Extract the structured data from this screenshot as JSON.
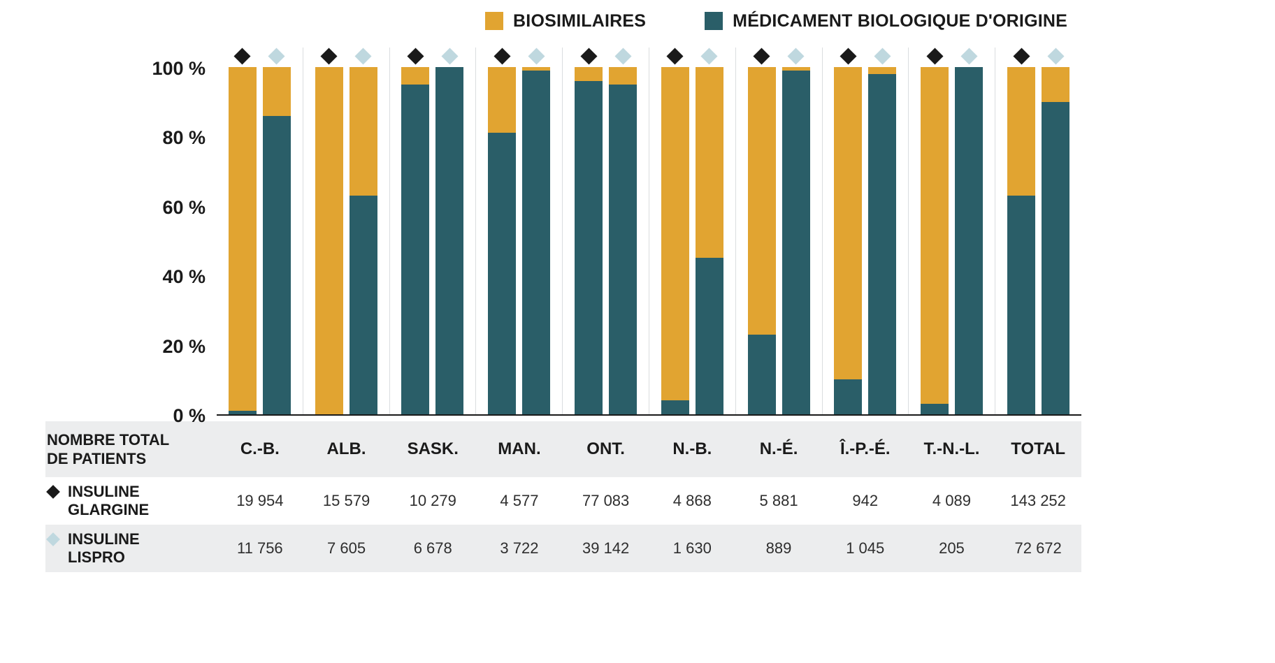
{
  "legend": {
    "items": [
      {
        "label": "BIOSIMILAIRES",
        "color": "#E1A431"
      },
      {
        "label": "MÉDICAMENT BIOLOGIQUE D'ORIGINE",
        "color": "#2A5E68"
      }
    ]
  },
  "chart_data": {
    "type": "bar",
    "stacked": true,
    "unit": "percent",
    "title": "",
    "xlabel": "",
    "ylabel": "",
    "ylim": [
      0,
      100
    ],
    "grid": "vertical-separators",
    "legend_position": "top-right",
    "categories": [
      "C.-B.",
      "ALB.",
      "SASK.",
      "MAN.",
      "ONT.",
      "N.-B.",
      "N.-É.",
      "Î.-P.-É.",
      "T.-N.-L.",
      "TOTAL"
    ],
    "y_ticks": [
      {
        "label": "100 %",
        "value": 100
      },
      {
        "label": "80 %",
        "value": 80
      },
      {
        "label": "60 %",
        "value": 60
      },
      {
        "label": "40 %",
        "value": 40
      },
      {
        "label": "20 %",
        "value": 20
      },
      {
        "label": "0 %",
        "value": 0
      }
    ],
    "series_groups": [
      {
        "name": "INSULINE GLARGINE",
        "marker": "black-diamond",
        "marker_color": "#1a1a1a",
        "biosimilaires": [
          99,
          100,
          5,
          19,
          4,
          96,
          77,
          90,
          97,
          37
        ],
        "origine": [
          1,
          0,
          95,
          81,
          96,
          4,
          23,
          10,
          3,
          63
        ]
      },
      {
        "name": "INSULINE LISPRO",
        "marker": "light-blue-diamond",
        "marker_color": "#BFD8DF",
        "biosimilaires": [
          14,
          37,
          0,
          1,
          5,
          55,
          1,
          2,
          0,
          10
        ],
        "origine": [
          86,
          63,
          100,
          99,
          95,
          45,
          99,
          98,
          100,
          90
        ]
      }
    ]
  },
  "table": {
    "row_header": "NOMBRE TOTAL DE PATIENTS",
    "rows": [
      {
        "label": "INSULINE GLARGINE",
        "marker": "black-diamond",
        "values": [
          "19 954",
          "15 579",
          "10 279",
          "4 577",
          "77 083",
          "4 868",
          "5 881",
          "942",
          "4 089",
          "143 252"
        ]
      },
      {
        "label": "INSULINE LISPRO",
        "marker": "light-blue-diamond",
        "values": [
          "11 756",
          "7 605",
          "6 678",
          "3 722",
          "39 142",
          "1 630",
          "889",
          "1 045",
          "205",
          "72 672"
        ]
      }
    ]
  }
}
